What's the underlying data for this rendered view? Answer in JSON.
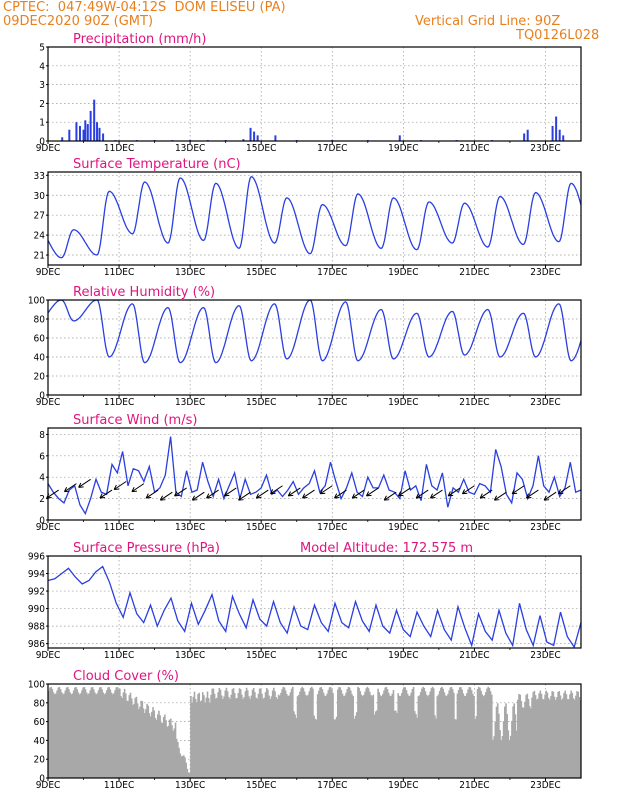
{
  "header": {
    "left1": "CPTEC:  047:49W-04:12S  DOM ELISEU (PA)",
    "left2": "09DEC2020 90Z (GMT)",
    "right1": "Vertical Grid Line: 90Z",
    "right2": "TQ0126L028"
  },
  "colors": {
    "header": "#e8801e",
    "title": "#e0147f",
    "line": "#2a3fe0",
    "cloud": "#a8a8a8"
  },
  "x_ticks": [
    "9DEC",
    "11DEC",
    "13DEC",
    "15DEC",
    "17DEC",
    "19DEC",
    "21DEC",
    "23DEC"
  ],
  "chart_data": [
    {
      "type": "bar",
      "title": "Precipitation (mm/h)",
      "ylim": [
        0,
        5
      ],
      "yticks": [
        "0",
        "1",
        "2",
        "3",
        "4",
        "5"
      ],
      "days_start": 9,
      "values": [
        [
          0.4,
          0.2
        ],
        [
          0.6,
          0.6
        ],
        [
          0.8,
          1.0
        ],
        [
          0.9,
          0.8
        ],
        [
          1.0,
          0.6
        ],
        [
          1.05,
          1.1
        ],
        [
          1.12,
          0.9
        ],
        [
          1.2,
          1.6
        ],
        [
          1.3,
          2.2
        ],
        [
          1.38,
          1.0
        ],
        [
          1.45,
          0.7
        ],
        [
          1.55,
          0.4
        ],
        [
          1.9,
          0.05
        ],
        [
          2.5,
          0.05
        ],
        [
          3.0,
          0.05
        ],
        [
          3.5,
          0.05
        ],
        [
          4.0,
          0.05
        ],
        [
          4.5,
          0.05
        ],
        [
          5.0,
          0.05
        ],
        [
          5.5,
          0.1
        ],
        [
          5.7,
          0.7
        ],
        [
          5.8,
          0.5
        ],
        [
          5.9,
          0.3
        ],
        [
          6.4,
          0.3
        ],
        [
          7.0,
          0.05
        ],
        [
          8.0,
          0.05
        ],
        [
          9.0,
          0.05
        ],
        [
          9.9,
          0.3
        ],
        [
          10.5,
          0.05
        ],
        [
          11.5,
          0.05
        ],
        [
          12.5,
          0.05
        ],
        [
          13.4,
          0.4
        ],
        [
          13.5,
          0.6
        ],
        [
          14.2,
          0.8
        ],
        [
          14.3,
          1.3
        ],
        [
          14.4,
          0.6
        ],
        [
          14.5,
          0.3
        ]
      ]
    },
    {
      "type": "line",
      "title": "Surface Temperature (nC)",
      "ylim": [
        19.5,
        33.5
      ],
      "yticks": [
        "21",
        "24",
        "27",
        "30",
        "33"
      ],
      "daily_max": [
        24.8,
        30.6,
        32.0,
        32.6,
        31.8,
        32.8,
        29.6,
        28.6,
        30.2,
        29.6,
        29.0,
        28.8,
        29.8,
        30.4,
        31.8,
        32.2
      ],
      "daily_min": [
        20.6,
        21.0,
        24.2,
        22.8,
        23.2,
        22.0,
        22.8,
        21.2,
        22.4,
        22.0,
        21.8,
        22.8,
        22.2,
        22.6,
        23.0,
        23.2
      ],
      "max_phase": 0.72,
      "min_phase": 0.38
    },
    {
      "type": "line",
      "title": "Relative Humidity (%)",
      "ylim": [
        0,
        100
      ],
      "yticks": [
        "0",
        "20",
        "40",
        "60",
        "80",
        "100"
      ],
      "daily_max": [
        100,
        100,
        96,
        92,
        92,
        94,
        96,
        100,
        98,
        90,
        86,
        88,
        90,
        86,
        96,
        92
      ],
      "daily_min": [
        78,
        40,
        34,
        34,
        34,
        36,
        38,
        36,
        36,
        38,
        40,
        42,
        40,
        40,
        36,
        42
      ],
      "max_phase": 0.38,
      "min_phase": 0.72
    },
    {
      "type": "line",
      "title": "Surface Wind (m/s)",
      "ylim": [
        0,
        8.6
      ],
      "yticks": [
        "0",
        "2",
        "4",
        "6",
        "8"
      ],
      "values": [
        3.4,
        2.6,
        2.0,
        1.6,
        2.8,
        3.2,
        1.4,
        0.6,
        2.0,
        3.8,
        2.6,
        2.4,
        5.2,
        4.4,
        6.4,
        3.2,
        4.8,
        4.6,
        3.6,
        5.0,
        2.6,
        3.0,
        4.2,
        7.8,
        2.6,
        2.2,
        4.6,
        2.6,
        2.8,
        5.4,
        3.6,
        2.2,
        3.8,
        2.0,
        3.2,
        4.4,
        2.0,
        3.8,
        2.4,
        2.6,
        3.0,
        4.2,
        2.4,
        2.8,
        2.2,
        2.8,
        3.6,
        2.4,
        3.0,
        3.4,
        4.6,
        2.6,
        3.2,
        5.4,
        3.6,
        2.0,
        3.0,
        4.4,
        2.6,
        2.2,
        4.0,
        3.0,
        3.0,
        4.2,
        2.8,
        2.6,
        2.0,
        4.6,
        2.8,
        3.2,
        1.8,
        5.2,
        3.2,
        2.8,
        4.4,
        1.2,
        3.0,
        2.6,
        3.8,
        2.6,
        2.4,
        3.4,
        3.2,
        2.6,
        6.6,
        5.0,
        2.4,
        1.6,
        4.4,
        3.8,
        2.0,
        3.2,
        6.0,
        3.2,
        2.6,
        4.0,
        2.2,
        3.0,
        5.4,
        2.6,
        2.8
      ],
      "arrows": [
        [
          0.3,
          2.8
        ],
        [
          0.8,
          3.4
        ],
        [
          1.2,
          3.8
        ],
        [
          1.8,
          2.8
        ],
        [
          2.2,
          3.6
        ],
        [
          2.7,
          3.4
        ],
        [
          3.1,
          2.8
        ],
        [
          3.5,
          2.6
        ],
        [
          3.9,
          3.0
        ],
        [
          4.4,
          2.6
        ],
        [
          4.8,
          2.8
        ],
        [
          5.3,
          3.0
        ],
        [
          5.7,
          2.6
        ],
        [
          6.2,
          2.8
        ],
        [
          6.6,
          3.2
        ],
        [
          7.1,
          3.0
        ],
        [
          7.5,
          2.8
        ],
        [
          8.0,
          3.2
        ],
        [
          8.4,
          2.8
        ],
        [
          8.9,
          2.8
        ],
        [
          9.3,
          3.0
        ],
        [
          9.8,
          2.6
        ],
        [
          10.2,
          3.0
        ],
        [
          10.7,
          2.8
        ],
        [
          11.1,
          2.8
        ],
        [
          11.6,
          3.0
        ],
        [
          12.0,
          3.2
        ],
        [
          12.5,
          2.8
        ],
        [
          12.9,
          2.6
        ],
        [
          13.4,
          3.2
        ],
        [
          13.8,
          2.8
        ],
        [
          14.3,
          2.6
        ],
        [
          14.7,
          3.2
        ]
      ]
    },
    {
      "type": "line",
      "title": "Surface Pressure (hPa)",
      "annotation": "Model Altitude: 172.575 m",
      "ylim": [
        985.5,
        996
      ],
      "yticks": [
        "986",
        "988",
        "990",
        "992",
        "994",
        "996"
      ],
      "values": [
        993.2,
        993.4,
        994.0,
        994.6,
        993.6,
        992.8,
        993.2,
        994.2,
        994.8,
        993.0,
        990.6,
        989.0,
        991.8,
        989.4,
        988.4,
        990.4,
        988.0,
        989.8,
        991.2,
        988.6,
        987.4,
        990.6,
        988.2,
        989.8,
        991.6,
        988.6,
        987.4,
        991.4,
        989.4,
        987.8,
        991.0,
        988.8,
        988.0,
        990.8,
        988.4,
        987.2,
        990.2,
        988.0,
        987.6,
        990.4,
        988.4,
        987.4,
        990.6,
        988.4,
        987.8,
        990.8,
        988.6,
        987.4,
        990.4,
        988.0,
        987.2,
        989.8,
        987.6,
        986.8,
        989.6,
        988.0,
        986.8,
        989.8,
        987.6,
        986.4,
        990.2,
        987.8,
        985.8,
        989.4,
        987.4,
        986.4,
        989.8,
        987.2,
        985.8,
        990.6,
        987.6,
        985.8,
        989.2,
        986.2,
        985.8,
        989.6,
        986.8,
        985.6,
        988.4
      ]
    },
    {
      "type": "bar",
      "title": "Cloud Cover (%)",
      "ylim": [
        0,
        100
      ],
      "yticks": [
        "0",
        "20",
        "40",
        "60",
        "80",
        "100"
      ],
      "days_start": 9
    }
  ]
}
